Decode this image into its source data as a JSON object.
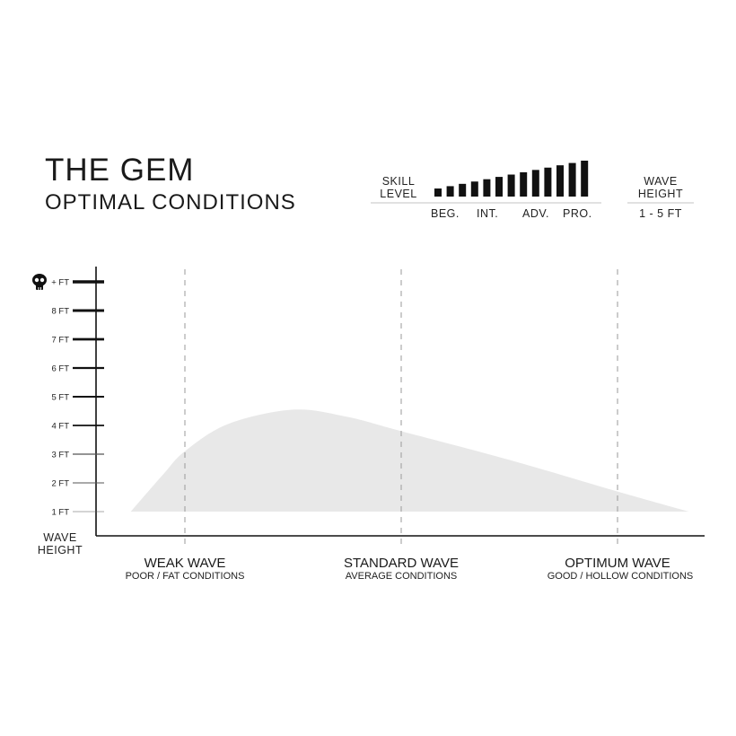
{
  "header": {
    "title": "THE GEM",
    "subtitle": "OPTIMAL CONDITIONS"
  },
  "skill": {
    "label_line1": "SKILL",
    "label_line2": "LEVEL",
    "levels": [
      "BEG.",
      "INT.",
      "ADV.",
      "PRO."
    ],
    "bar_count": 13,
    "bar_color": "#111111"
  },
  "wave_height_box": {
    "label_line1": "WAVE",
    "label_line2": "HEIGHT",
    "value": "1 - 5 FT"
  },
  "chart_data": {
    "type": "area",
    "ylabel_line1": "WAVE",
    "ylabel_line2": "HEIGHT",
    "y_ticks": [
      {
        "value": 1,
        "label": "1 FT"
      },
      {
        "value": 2,
        "label": "2 FT"
      },
      {
        "value": 3,
        "label": "3 FT"
      },
      {
        "value": 4,
        "label": "4 FT"
      },
      {
        "value": 5,
        "label": "5 FT"
      },
      {
        "value": 6,
        "label": "6 FT"
      },
      {
        "value": 7,
        "label": "7 FT"
      },
      {
        "value": 8,
        "label": "8 FT"
      },
      {
        "value": 9,
        "label": "+ FT",
        "icon": "skull-icon"
      }
    ],
    "categories": [
      {
        "x": 1,
        "title": "WEAK WAVE",
        "subtitle": "POOR / FAT CONDITIONS"
      },
      {
        "x": 2,
        "title": "STANDARD WAVE",
        "subtitle": "AVERAGE CONDITIONS"
      },
      {
        "x": 3,
        "title": "OPTIMUM WAVE",
        "subtitle": "GOOD / HOLLOW CONDITIONS"
      }
    ],
    "curve": [
      [
        0.75,
        1
      ],
      [
        0.9,
        2.3
      ],
      [
        1,
        3.1
      ],
      [
        1.2,
        4.05
      ],
      [
        1.5,
        4.55
      ],
      [
        1.75,
        4.3
      ],
      [
        2,
        3.8
      ],
      [
        2.5,
        2.8
      ],
      [
        3,
        1.7
      ],
      [
        3.33,
        1
      ]
    ],
    "baseline": 1,
    "ylim": [
      0.2,
      9.5
    ],
    "fill_color": "#e8e8e8",
    "grid": "dashed vertical at categories"
  }
}
